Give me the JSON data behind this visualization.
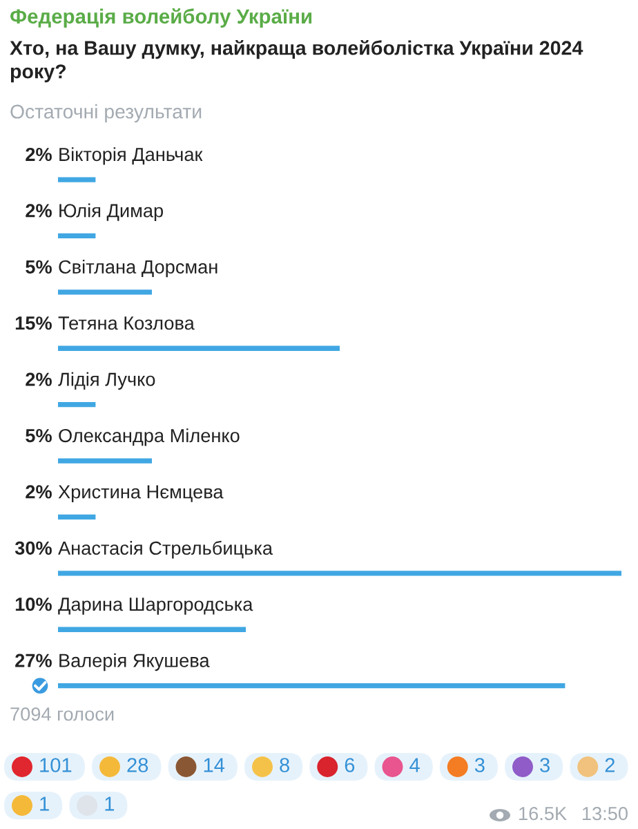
{
  "chart_data": {
    "type": "bar",
    "orientation": "horizontal",
    "title": "Хто, на Вашу думку, найкраща волейболістка України 2024 року?",
    "subtitle": "Остаточні результати",
    "categories": [
      "Вікторія Даньчак",
      "Юлія Димар",
      "Світлана Дорсман",
      "Тетяна Козлова",
      "Лідія Лучко",
      "Олександра Міленко",
      "Христина Нємцева",
      "Анастасія Стрельбицька",
      "Дарина Шаргородська",
      "Валерія Якушева"
    ],
    "values": [
      2,
      2,
      5,
      15,
      2,
      5,
      2,
      30,
      10,
      27
    ],
    "value_labels": [
      "2%",
      "2%",
      "5%",
      "15%",
      "2%",
      "5%",
      "2%",
      "30%",
      "10%",
      "27%"
    ],
    "color": "#40a7e3",
    "annotations": [
      "Федерація волейболу України",
      "7094 голоси",
      "101",
      "28",
      "14",
      "8",
      "6",
      "4",
      "3",
      "3",
      "2",
      "1",
      "1",
      "16.5K",
      "13:50"
    ]
  }
}
